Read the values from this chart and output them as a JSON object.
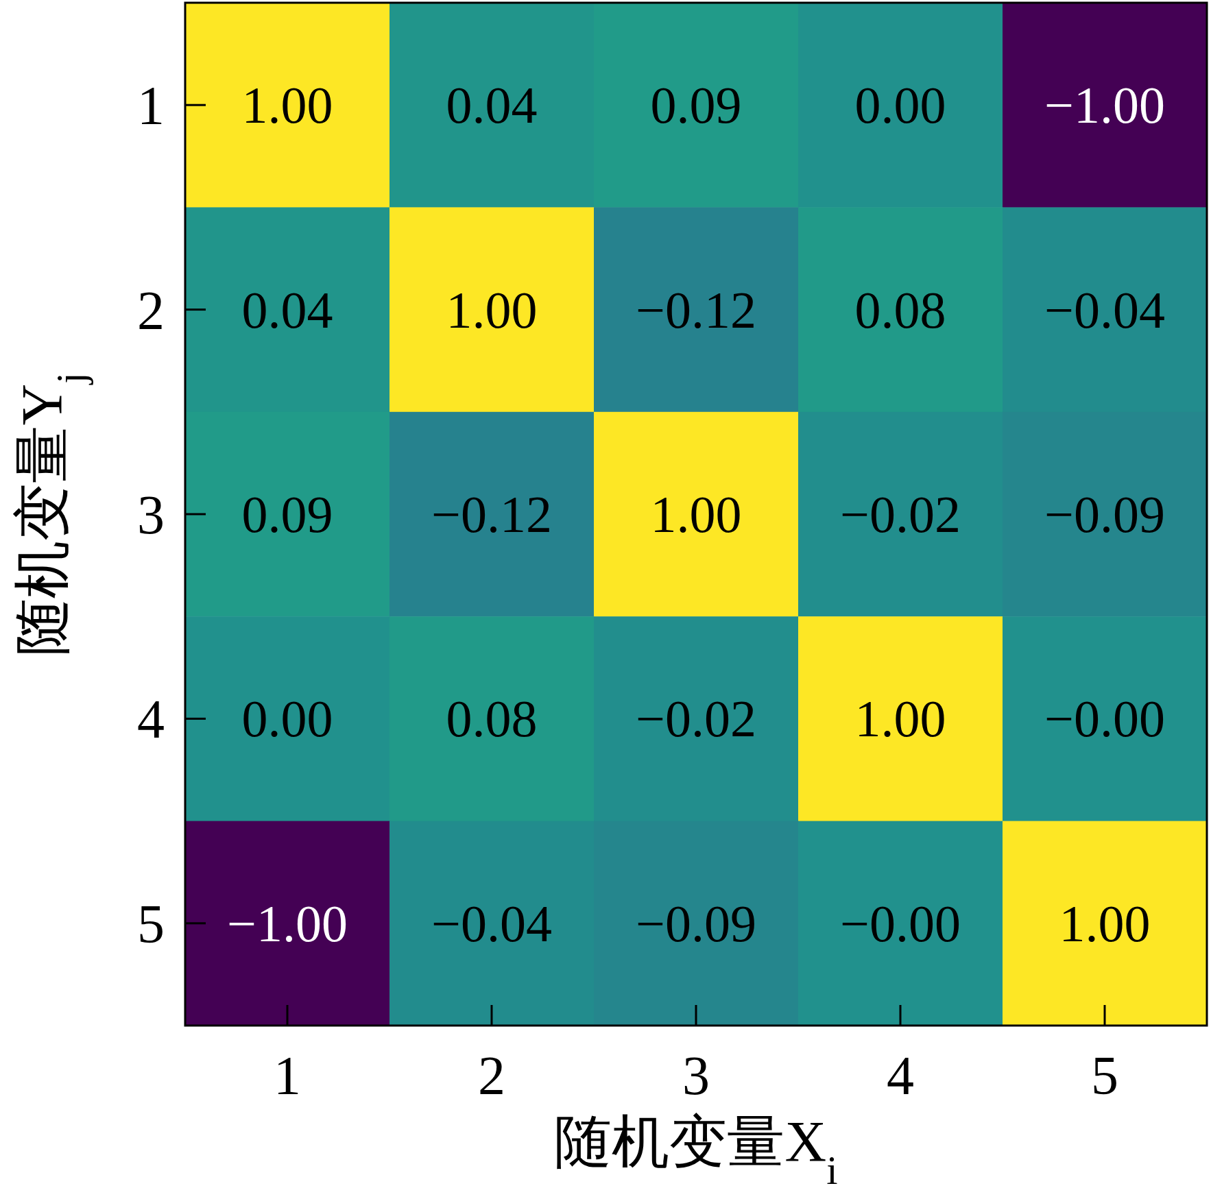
{
  "chart_data": {
    "type": "heatmap",
    "xlabel": "随机变量X$_{i}$",
    "ylabel": "随机变量Y$_{j}$",
    "categories": [
      "1",
      "2",
      "3",
      "4",
      "5"
    ],
    "y_categories": [
      "1",
      "2",
      "3",
      "4",
      "5"
    ],
    "cells": [
      [
        1.0,
        0.04,
        0.09,
        0.0,
        -1.0
      ],
      [
        0.04,
        1.0,
        -0.12,
        0.08,
        -0.04
      ],
      [
        0.09,
        -0.12,
        1.0,
        -0.02,
        -0.09
      ],
      [
        0.0,
        0.08,
        -0.02,
        1.0,
        -0.0
      ],
      [
        -1.0,
        -0.04,
        -0.09,
        -0.0,
        1.0
      ]
    ],
    "cell_labels": [
      [
        "1.00",
        "0.04",
        "0.09",
        "0.00",
        "−1.00"
      ],
      [
        "0.04",
        "1.00",
        "−0.12",
        "0.08",
        "−0.04"
      ],
      [
        "0.09",
        "−0.12",
        "1.00",
        "−0.02",
        "−0.09"
      ],
      [
        "0.00",
        "0.08",
        "−0.02",
        "1.00",
        "−0.00"
      ],
      [
        "−1.00",
        "−0.04",
        "−0.09",
        "−0.00",
        "1.00"
      ]
    ]
  }
}
